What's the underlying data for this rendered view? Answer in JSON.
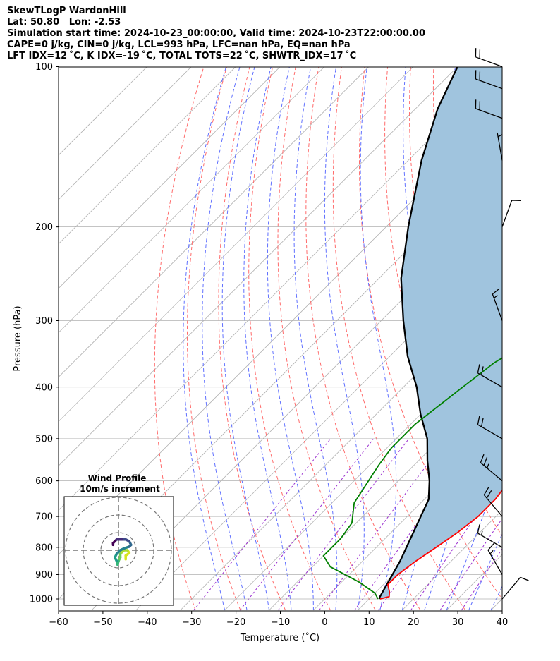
{
  "header": {
    "line1": "SkewTLogP WardonHill",
    "line2": "Lat: 50.80   Lon: -2.53",
    "line3": "Simulation start time: 2024-10-23_00:00:00, Valid time: 2024-10-23T22:00:00.00",
    "line4": "CAPE=0 j/kg, CIN=0 j/kg, LCL=993 hPa, LFC=nan hPa, EQ=nan hPa",
    "line5": "LFT IDX=12 ˚C, K IDX=-19 ˚C, TOTAL TOTS=22 ˚C, SHWTR_IDX=17 ˚C"
  },
  "colors": {
    "temperature": "#ff0000",
    "dewpoint": "#008000",
    "parcel": "#000000",
    "shade": "#a0c4de",
    "dry_adiabat": "#ff6b6b",
    "moist_adiabat": "#6070ff",
    "mixing_ratio": "#9b30d0",
    "isotherm": "#b0b0b0"
  },
  "chart_data": [
    {
      "type": "line",
      "title": "",
      "xlabel": "Temperature (˚C)",
      "ylabel": "Pressure (hPa)",
      "x_ticks": [
        -60,
        -50,
        -40,
        -30,
        -20,
        -10,
        0,
        10,
        20,
        30,
        40
      ],
      "y_ticks": [
        100,
        200,
        300,
        400,
        500,
        600,
        700,
        800,
        900,
        1000
      ],
      "xlim": [
        -60,
        40
      ],
      "ylim": [
        1050,
        100
      ],
      "y_scale": "log",
      "skew": "isotherms at 45 degrees",
      "grid": true,
      "series": [
        {
          "points": [
            [
              12.5,
              1000
            ],
            [
              14,
              990
            ],
            [
              13,
              970
            ],
            [
              11,
              940
            ],
            [
              11,
              900
            ],
            [
              12,
              850
            ],
            [
              13.5,
              800
            ],
            [
              15,
              750
            ],
            [
              16,
              700
            ],
            [
              16,
              650
            ],
            [
              15,
              600
            ],
            [
              12,
              550
            ],
            [
              8,
              500
            ],
            [
              4,
              450
            ],
            [
              1,
              400
            ],
            [
              -2,
              350
            ],
            [
              -6,
              300
            ],
            [
              -9,
              270
            ],
            [
              -12,
              240
            ],
            [
              -15,
              210
            ],
            [
              -16,
              190
            ],
            [
              -14,
              170
            ],
            [
              -13,
              155
            ],
            [
              -10,
              140
            ],
            [
              -8,
              130
            ],
            [
              -10,
              115
            ],
            [
              -12,
              100
            ]
          ]
        },
        {
          "points": [
            [
              12,
              1000
            ],
            [
              10,
              975
            ],
            [
              4,
              930
            ],
            [
              -6,
              870
            ],
            [
              -10,
              830
            ],
            [
              -10,
              770
            ],
            [
              -11,
              720
            ],
            [
              -15,
              660
            ],
            [
              -18,
              560
            ],
            [
              -19,
              520
            ],
            [
              -19,
              470
            ],
            [
              -17,
              410
            ],
            [
              -15,
              360
            ],
            [
              -11,
              320
            ],
            [
              -7,
              290
            ],
            [
              -7,
              260
            ],
            [
              -5,
              230
            ],
            [
              -4,
              200
            ],
            [
              -4,
              175
            ],
            [
              -2,
              155
            ],
            [
              3,
              145
            ],
            [
              2,
              135
            ],
            [
              3,
              120
            ],
            [
              5,
              100
            ]
          ]
        },
        {
          "points": [
            [
              12.5,
              1000
            ],
            [
              12,
              993
            ],
            [
              11,
              950
            ],
            [
              8.5,
              850
            ],
            [
              5,
              750
            ],
            [
              1,
              650
            ],
            [
              -3,
              600
            ],
            [
              -8,
              550
            ],
            [
              -13,
              500
            ],
            [
              -20,
              450
            ],
            [
              -27,
              400
            ],
            [
              -36,
              350
            ],
            [
              -45,
              300
            ],
            [
              -55,
              250
            ],
            [
              -65,
              200
            ],
            [
              -77,
              150
            ],
            [
              -85,
              120
            ],
            [
              -90,
              100
            ]
          ]
        }
      ]
    },
    {
      "type": "hodograph",
      "title": "Wind Profile",
      "subtitle": "10m/s increment",
      "rings": [
        1,
        2,
        3
      ],
      "points": [
        [
          4,
          -5
        ],
        [
          4,
          -3
        ],
        [
          6,
          -1.5
        ],
        [
          5,
          0
        ],
        [
          3,
          0
        ],
        [
          1,
          -2
        ],
        [
          1,
          -4
        ],
        [
          0,
          -6
        ],
        [
          -0.5,
          -8
        ],
        [
          -1,
          -6
        ],
        [
          -2,
          -4
        ],
        [
          -1,
          -2
        ],
        [
          1,
          0
        ],
        [
          3,
          1
        ],
        [
          6,
          2
        ],
        [
          7,
          3
        ],
        [
          6,
          5
        ],
        [
          4,
          6
        ],
        [
          2,
          6
        ],
        [
          -1,
          6
        ],
        [
          -2,
          5
        ],
        [
          -3,
          4
        ],
        [
          -3,
          3
        ]
      ]
    }
  ],
  "wind_barbs": [
    {
      "p": 1000,
      "speed": 10,
      "dir": 40
    },
    {
      "p": 900,
      "speed": 15,
      "dir": 330
    },
    {
      "p": 800,
      "speed": 15,
      "dir": 300
    },
    {
      "p": 700,
      "speed": 20,
      "dir": 320
    },
    {
      "p": 600,
      "speed": 25,
      "dir": 310
    },
    {
      "p": 500,
      "speed": 20,
      "dir": 300
    },
    {
      "p": 400,
      "speed": 20,
      "dir": 300
    },
    {
      "p": 300,
      "speed": 15,
      "dir": 340
    },
    {
      "p": 200,
      "speed": 10,
      "dir": 20
    },
    {
      "p": 150,
      "speed": 5,
      "dir": 350
    },
    {
      "p": 125,
      "speed": 20,
      "dir": 290
    },
    {
      "p": 110,
      "speed": 20,
      "dir": 290
    },
    {
      "p": 100,
      "speed": 20,
      "dir": 290
    }
  ]
}
